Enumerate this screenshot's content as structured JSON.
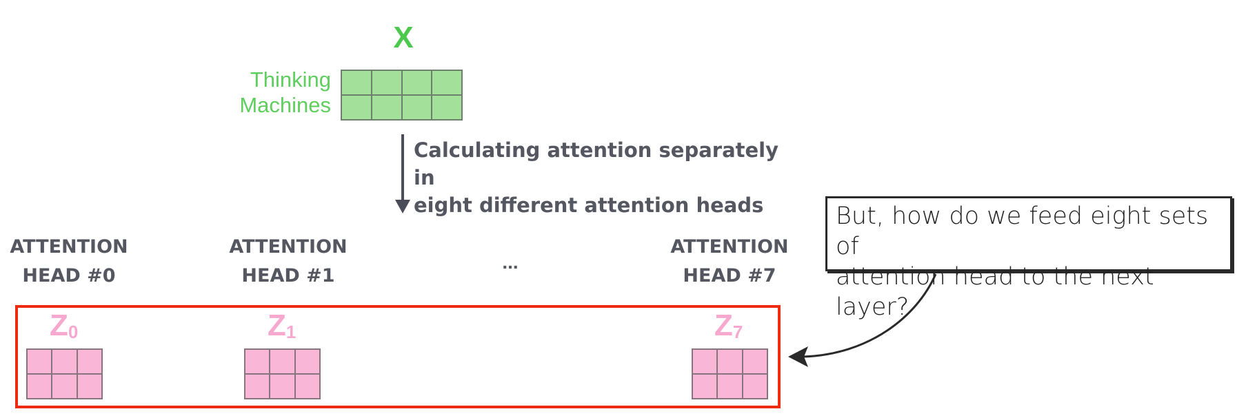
{
  "input": {
    "symbol": "X",
    "rows": [
      "Thinking",
      "Machines"
    ],
    "matrix": {
      "rows": 2,
      "cols": 4,
      "color": "#a3e09a"
    }
  },
  "arrow": {
    "caption_line1": "Calculating attention separately in",
    "caption_line2": "eight different attention heads"
  },
  "heads": [
    {
      "label_line1": "ATTENTION",
      "label_line2": "HEAD #0",
      "z_symbol": "Z",
      "z_sub": "0"
    },
    {
      "label_line1": "ATTENTION",
      "label_line2": "HEAD #1",
      "z_symbol": "Z",
      "z_sub": "1"
    },
    {
      "label_line1": "ATTENTION",
      "label_line2": "HEAD #7",
      "z_symbol": "Z",
      "z_sub": "7"
    }
  ],
  "ellipsis": "...",
  "output_matrix": {
    "rows": 2,
    "cols": 3,
    "color": "#fab6d6"
  },
  "callout": {
    "line1": "But, how do we feed eight sets of",
    "line2": "attention head to the next layer?"
  },
  "colors": {
    "green_text": "#4cc94c",
    "pink": "#f7a8cf",
    "red_box": "#ee2a10",
    "dark_text": "#545660"
  }
}
